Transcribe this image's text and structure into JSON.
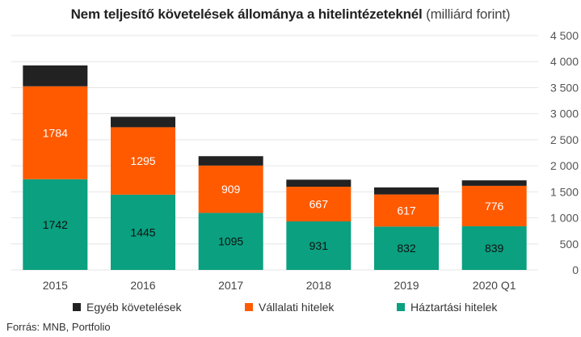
{
  "title": {
    "bold": "Nem teljesítő követelések állománya a hitelintézeteknél",
    "light": "(milliárd forint)"
  },
  "source": "Forrás: MNB, Portfolio",
  "chart_data": {
    "type": "bar",
    "stacked": true,
    "categories": [
      "2015",
      "2016",
      "2017",
      "2018",
      "2019",
      "2020 Q1"
    ],
    "series": [
      {
        "name": "Háztartási hitelek",
        "color": "#0aa080",
        "values": [
          1742,
          1445,
          1095,
          931,
          832,
          839
        ],
        "labeled": true
      },
      {
        "name": "Vállalati hitelek",
        "color": "#ff5a00",
        "values": [
          1784,
          1295,
          909,
          667,
          617,
          776
        ],
        "labeled": true
      },
      {
        "name": "Egyéb követelések",
        "color": "#222222",
        "values": [
          400,
          200,
          180,
          135,
          135,
          105
        ],
        "labeled": false
      }
    ],
    "legend_order": [
      "Egyéb követelések",
      "Vállalati hitelek",
      "Háztartási hitelek"
    ],
    "yaxis": {
      "position": "right",
      "ylim": [
        0,
        4500
      ],
      "ticks": [
        0,
        500,
        1000,
        1500,
        2000,
        2500,
        3000,
        3500,
        4000,
        4500
      ],
      "tick_labels": [
        "0",
        "500",
        "1 000",
        "1 500",
        "2 000",
        "2 500",
        "3 000",
        "3 500",
        "4 000",
        "4 500"
      ]
    },
    "grid": true,
    "legend_position": "bottom"
  }
}
